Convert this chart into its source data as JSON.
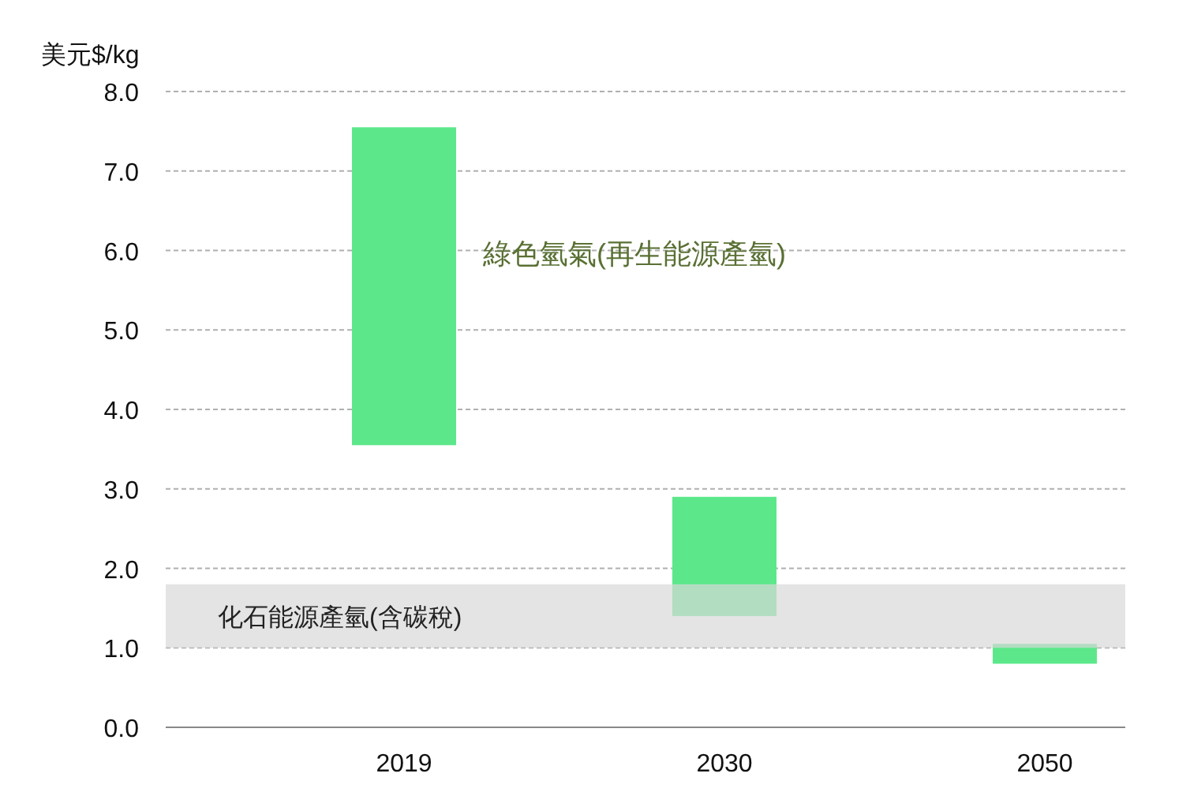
{
  "chart_data": {
    "type": "bar",
    "ylabel": "美元$/kg",
    "categories": [
      "2019",
      "2030",
      "2050"
    ],
    "values": [
      4.0,
      1.5,
      0.25
    ],
    "base": [
      3.55,
      1.4,
      0.8
    ],
    "color": "#5ce88a",
    "ylim": [
      0,
      8
    ],
    "yticks": [
      {
        "value": 0,
        "label": "0.0"
      },
      {
        "value": 1,
        "label": "1.0"
      },
      {
        "value": 2,
        "label": "2.0"
      },
      {
        "value": 3,
        "label": "3.0"
      },
      {
        "value": 4,
        "label": "4.0"
      },
      {
        "value": 5,
        "label": "5.0"
      },
      {
        "value": 6,
        "label": "6.0"
      },
      {
        "value": 7,
        "label": "7.0"
      },
      {
        "value": 8,
        "label": "8.0"
      }
    ],
    "grid": "y",
    "bands": [
      {
        "axis": "y",
        "from": 1.0,
        "to": 1.8,
        "label": "化石能源產氫(含碳稅)",
        "color": "#d9d9d9"
      }
    ],
    "annotations": [
      "綠色氫氣(再生能源產氫)"
    ]
  }
}
